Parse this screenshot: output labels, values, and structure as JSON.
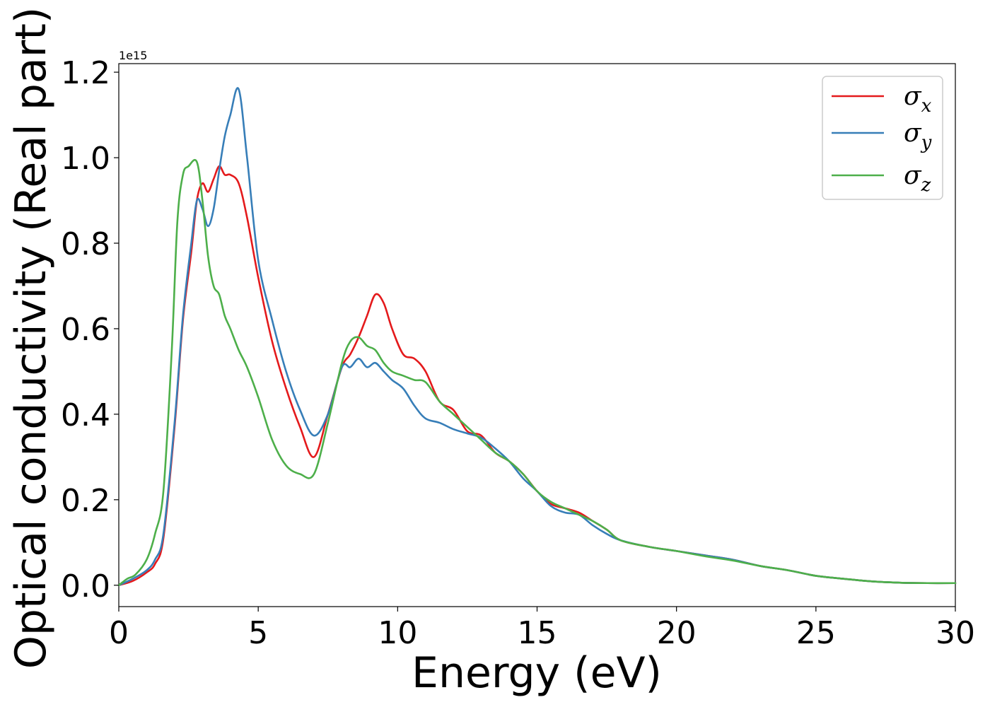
{
  "chart_data": {
    "type": "line",
    "title": "",
    "xlabel": "Energy (eV)",
    "ylabel": "Optical conductivity (Real part)",
    "y_offset_label": "1e15",
    "xlim": [
      0,
      30
    ],
    "ylim": [
      -0.05,
      1.22
    ],
    "xticks": [
      0,
      5,
      10,
      15,
      20,
      25,
      30
    ],
    "xtick_labels": [
      "0",
      "5",
      "10",
      "15",
      "20",
      "25",
      "30"
    ],
    "yticks": [
      0.0,
      0.2,
      0.4,
      0.6,
      0.8,
      1.0,
      1.2
    ],
    "ytick_labels": [
      "0.0",
      "0.2",
      "0.4",
      "0.6",
      "0.8",
      "1.0",
      "1.2"
    ],
    "grid": false,
    "legend_position": "top-right",
    "series": [
      {
        "name": "σx",
        "symbol": "σ",
        "subscript": "x",
        "color": "#e41a1c",
        "x": [
          0,
          0.5,
          1.0,
          1.3,
          1.6,
          2.0,
          2.3,
          2.6,
          2.8,
          3.0,
          3.2,
          3.4,
          3.6,
          3.8,
          4.0,
          4.3,
          4.6,
          5.0,
          5.5,
          6.0,
          6.5,
          7.0,
          7.5,
          8.0,
          8.3,
          8.6,
          8.9,
          9.2,
          9.5,
          9.8,
          10.2,
          10.6,
          11.0,
          11.5,
          12.0,
          12.5,
          13.0,
          13.5,
          14.0,
          14.5,
          15.0,
          15.5,
          16.0,
          16.5,
          17.0,
          17.5,
          18.0,
          19.0,
          20.0,
          21.0,
          22.0,
          23.0,
          24.0,
          25.0,
          26.0,
          27.0,
          28.0,
          29.0,
          30.0
        ],
        "y": [
          0.0,
          0.01,
          0.03,
          0.05,
          0.11,
          0.37,
          0.62,
          0.78,
          0.9,
          0.94,
          0.92,
          0.95,
          0.98,
          0.96,
          0.96,
          0.94,
          0.86,
          0.72,
          0.57,
          0.46,
          0.37,
          0.3,
          0.4,
          0.51,
          0.54,
          0.58,
          0.63,
          0.68,
          0.66,
          0.6,
          0.54,
          0.53,
          0.5,
          0.43,
          0.41,
          0.36,
          0.35,
          0.31,
          0.29,
          0.26,
          0.22,
          0.19,
          0.18,
          0.17,
          0.15,
          0.13,
          0.105,
          0.09,
          0.08,
          0.07,
          0.06,
          0.045,
          0.035,
          0.022,
          0.015,
          0.009,
          0.006,
          0.005,
          0.005
        ]
      },
      {
        "name": "σy",
        "symbol": "σ",
        "subscript": "y",
        "color": "#377eb8",
        "x": [
          0,
          0.5,
          1.0,
          1.3,
          1.6,
          2.0,
          2.3,
          2.6,
          2.8,
          3.0,
          3.2,
          3.4,
          3.6,
          3.8,
          4.0,
          4.3,
          4.6,
          5.0,
          5.5,
          6.0,
          6.5,
          7.0,
          7.5,
          8.0,
          8.3,
          8.6,
          8.9,
          9.2,
          9.5,
          9.8,
          10.2,
          10.6,
          11.0,
          11.5,
          12.0,
          12.5,
          13.0,
          13.5,
          14.0,
          14.5,
          15.0,
          15.5,
          16.0,
          16.5,
          17.0,
          17.5,
          18.0,
          19.0,
          20.0,
          21.0,
          22.0,
          23.0,
          24.0,
          25.0,
          26.0,
          27.0,
          28.0,
          29.0,
          30.0
        ],
        "y": [
          0.0,
          0.015,
          0.035,
          0.06,
          0.12,
          0.38,
          0.63,
          0.8,
          0.9,
          0.88,
          0.84,
          0.88,
          0.97,
          1.05,
          1.1,
          1.16,
          1.0,
          0.76,
          0.62,
          0.5,
          0.41,
          0.35,
          0.4,
          0.51,
          0.51,
          0.53,
          0.51,
          0.52,
          0.5,
          0.48,
          0.46,
          0.42,
          0.39,
          0.38,
          0.365,
          0.355,
          0.345,
          0.32,
          0.29,
          0.25,
          0.22,
          0.185,
          0.17,
          0.165,
          0.14,
          0.12,
          0.105,
          0.09,
          0.08,
          0.07,
          0.06,
          0.045,
          0.035,
          0.022,
          0.015,
          0.009,
          0.006,
          0.005,
          0.005
        ]
      },
      {
        "name": "σz",
        "symbol": "σ",
        "subscript": "z",
        "color": "#4daf4a",
        "x": [
          0,
          0.3,
          0.6,
          1.0,
          1.3,
          1.6,
          1.9,
          2.1,
          2.3,
          2.5,
          2.8,
          3.0,
          3.2,
          3.4,
          3.6,
          3.8,
          4.0,
          4.3,
          4.6,
          5.0,
          5.5,
          6.0,
          6.5,
          7.0,
          7.5,
          8.0,
          8.3,
          8.6,
          8.9,
          9.2,
          9.5,
          9.8,
          10.2,
          10.6,
          11.0,
          11.5,
          12.0,
          12.5,
          13.0,
          13.5,
          14.0,
          14.5,
          15.0,
          15.5,
          16.0,
          16.5,
          17.0,
          17.5,
          18.0,
          19.0,
          20.0,
          21.0,
          22.0,
          23.0,
          24.0,
          25.0,
          26.0,
          27.0,
          28.0,
          29.0,
          30.0
        ],
        "y": [
          0.0,
          0.015,
          0.025,
          0.06,
          0.12,
          0.22,
          0.55,
          0.85,
          0.96,
          0.98,
          0.99,
          0.9,
          0.77,
          0.7,
          0.68,
          0.63,
          0.6,
          0.55,
          0.51,
          0.44,
          0.34,
          0.28,
          0.26,
          0.26,
          0.38,
          0.52,
          0.57,
          0.58,
          0.56,
          0.55,
          0.52,
          0.5,
          0.49,
          0.48,
          0.475,
          0.43,
          0.4,
          0.37,
          0.34,
          0.31,
          0.29,
          0.26,
          0.22,
          0.195,
          0.18,
          0.165,
          0.15,
          0.13,
          0.105,
          0.09,
          0.08,
          0.068,
          0.058,
          0.045,
          0.035,
          0.022,
          0.015,
          0.009,
          0.006,
          0.005,
          0.005
        ]
      }
    ]
  }
}
